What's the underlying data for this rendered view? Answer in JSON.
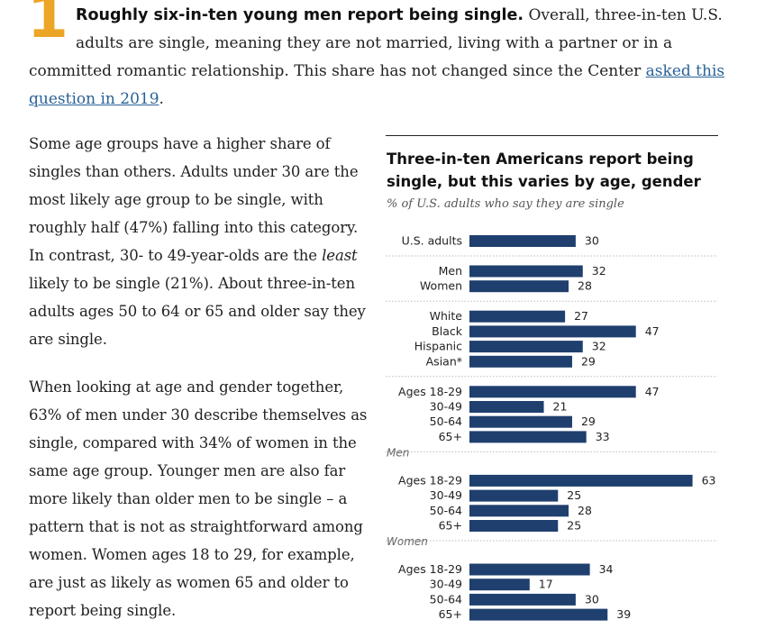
{
  "article": {
    "number": "1",
    "lead_heading": "Roughly six-in-ten young men report being single.",
    "lead_text": " Overall, three-in-ten U.S. adults are single, meaning they are not married, living with a partner or in a committed romantic relationship. This share has not changed since the Center ",
    "lead_link": "asked this question in 2019",
    "lead_end": ".",
    "para1_a": "Some age groups have a higher share of singles than others. Adults under 30 are the most likely age group to be single, with roughly half (47%) falling into this category. In contrast, 30- to 49-year-olds are the ",
    "para1_em": "least",
    "para1_b": " likely to be single (21%). About three-in-ten adults ages 50 to 64 or 65 and older say they are single.",
    "para2": "When looking at age and gender together, 63% of men under 30 describe themselves as single, compared with 34% of women in the same age group. Younger men are also far more likely than older men to be single – a pattern that is not as straightforward among women. Women ages 18 to 29, for example, are just as likely as women 65 and older to report being single."
  },
  "chart_data": {
    "type": "bar",
    "orientation": "horizontal",
    "title": "Three-in-ten Americans report being single, but this varies by age, gender",
    "subtitle": "% of U.S. adults who say they are single",
    "color": "#1f3f6e",
    "xlim": [
      0,
      100
    ],
    "groups": [
      {
        "label": "",
        "bars": [
          {
            "label": "U.S. adults",
            "value": 30
          }
        ]
      },
      {
        "label": "",
        "bars": [
          {
            "label": "Men",
            "value": 32
          },
          {
            "label": "Women",
            "value": 28
          }
        ]
      },
      {
        "label": "",
        "bars": [
          {
            "label": "White",
            "value": 27
          },
          {
            "label": "Black",
            "value": 47
          },
          {
            "label": "Hispanic",
            "value": 32
          },
          {
            "label": "Asian*",
            "value": 29
          }
        ]
      },
      {
        "label": "",
        "bars": [
          {
            "label": "Ages 18-29",
            "value": 47
          },
          {
            "label": "30-49",
            "value": 21
          },
          {
            "label": "50-64",
            "value": 29
          },
          {
            "label": "65+",
            "value": 33
          }
        ]
      },
      {
        "label": "Men",
        "bars": [
          {
            "label": "Ages 18-29",
            "value": 63
          },
          {
            "label": "30-49",
            "value": 25
          },
          {
            "label": "50-64",
            "value": 28
          },
          {
            "label": "65+",
            "value": 25
          }
        ]
      },
      {
        "label": "Women",
        "bars": [
          {
            "label": "Ages 18-29",
            "value": 34
          },
          {
            "label": "30-49",
            "value": 17
          },
          {
            "label": "50-64",
            "value": 30
          },
          {
            "label": "65+",
            "value": 39
          }
        ]
      }
    ]
  }
}
